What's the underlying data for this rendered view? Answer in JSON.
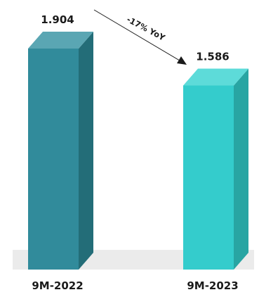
{
  "chart_data": {
    "type": "bar",
    "categories": [
      "9M-2022",
      "9M-2023"
    ],
    "values": [
      1.904,
      1.586
    ],
    "value_labels": [
      "1.904",
      "1.586"
    ],
    "annotation": "-17% YoY",
    "title": "",
    "xlabel": "",
    "ylabel": "",
    "ylim": [
      0,
      2.1
    ],
    "grid": false,
    "colors": {
      "bar1_front": "#318b9b",
      "bar1_side": "#236d78",
      "bar1_top": "#5aa6b3",
      "bar2_front": "#34cccc",
      "bar2_side": "#28a5a3",
      "bar2_top": "#5ddbd9",
      "floor": "#ebebeb"
    }
  }
}
